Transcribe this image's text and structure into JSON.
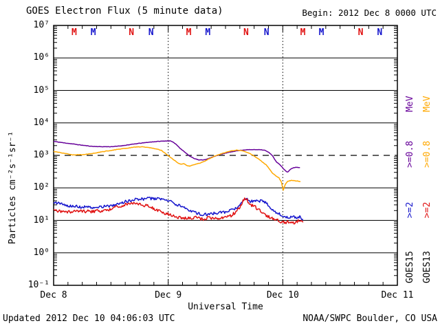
{
  "header": {
    "title": "GOES Electron Flux (5 minute data)",
    "begin": "Begin: 2012 Dec 8 0000 UTC"
  },
  "footer": {
    "updated": "Updated 2012 Dec 10 04:06:03 UTC",
    "source": "NOAA/SWPC Boulder, CO USA"
  },
  "axes": {
    "ylabel": "Particles cm⁻²s⁻¹sr⁻¹",
    "xlabel": "Universal Time",
    "x_ticks": [
      "Dec 8",
      "Dec 9",
      "Dec 10",
      "Dec 11"
    ],
    "y_ticks": [
      "10⁷",
      "10⁶",
      "10⁵",
      "10⁴",
      "10³",
      "10²",
      "10¹",
      "10⁰",
      "10⁻¹"
    ]
  },
  "colors": {
    "black": "#000000",
    "blue": "#1414CC",
    "red": "#E01010",
    "purple": "#660099",
    "gold": "#FFA800",
    "background": "#FFFFFF"
  },
  "legend": {
    "goes15": {
      "sat": "GOES15",
      "e2": ">=2",
      "e08": ">=0.8",
      "mev": "MeV"
    },
    "goes13": {
      "sat": "GOES13",
      "e2": ">=2",
      "e08": ">=0.8",
      "mev": "MeV"
    }
  },
  "chart_data": {
    "type": "line",
    "title": "GOES Electron Flux (5 minute data)",
    "x_unit": "hours since 2012 Dec 8 0000 UTC",
    "x_range": [
      0,
      72
    ],
    "y_scale": "log",
    "y_range": [
      0.1,
      10000000
    ],
    "grid_decades": [
      1000000,
      100000,
      10000,
      100,
      10,
      1
    ],
    "threshold": {
      "value": 1000,
      "style": "dashed"
    },
    "day_lines": [
      24,
      48
    ],
    "legend_position": "right-rotated",
    "marker_colors": {
      "GOES13": "#E01010",
      "GOES15": "#1414CC"
    },
    "markers": [
      {
        "h": 4.3,
        "label": "M",
        "sat": "GOES13"
      },
      {
        "h": 8.3,
        "label": "M",
        "sat": "GOES15"
      },
      {
        "h": 16.3,
        "label": "N",
        "sat": "GOES13"
      },
      {
        "h": 20.4,
        "label": "N",
        "sat": "GOES15"
      },
      {
        "h": 28.3,
        "label": "M",
        "sat": "GOES13"
      },
      {
        "h": 32.3,
        "label": "M",
        "sat": "GOES15"
      },
      {
        "h": 40.3,
        "label": "N",
        "sat": "GOES13"
      },
      {
        "h": 44.6,
        "label": "N",
        "sat": "GOES15"
      },
      {
        "h": 52.2,
        "label": "M",
        "sat": "GOES13"
      },
      {
        "h": 56.1,
        "label": "M",
        "sat": "GOES15"
      },
      {
        "h": 64.3,
        "label": "N",
        "sat": "GOES13"
      },
      {
        "h": 68.3,
        "label": "N",
        "sat": "GOES15"
      }
    ],
    "series": [
      {
        "id": "goes15-ge08mev",
        "name": "GOES15 >=0.8 MeV",
        "color": "#660099",
        "noise": 0.006,
        "points": [
          [
            0,
            2700
          ],
          [
            2,
            2450
          ],
          [
            4,
            2250
          ],
          [
            6,
            2050
          ],
          [
            8,
            1900
          ],
          [
            10,
            1850
          ],
          [
            12,
            1850
          ],
          [
            14,
            1950
          ],
          [
            16,
            2150
          ],
          [
            18,
            2350
          ],
          [
            20,
            2550
          ],
          [
            22,
            2700
          ],
          [
            23.5,
            2780
          ],
          [
            24.5,
            2780
          ],
          [
            25.5,
            2300
          ],
          [
            26.5,
            1650
          ],
          [
            27.5,
            1250
          ],
          [
            28.5,
            950
          ],
          [
            29.5,
            800
          ],
          [
            30.5,
            720
          ],
          [
            31.5,
            730
          ],
          [
            32.5,
            800
          ],
          [
            33.8,
            950
          ],
          [
            35,
            1080
          ],
          [
            36.3,
            1200
          ],
          [
            37.7,
            1330
          ],
          [
            39,
            1430
          ],
          [
            40.5,
            1490
          ],
          [
            42,
            1500
          ],
          [
            43.2,
            1510
          ],
          [
            44.2,
            1440
          ],
          [
            45,
            1250
          ],
          [
            45.8,
            1000
          ],
          [
            46.6,
            640
          ],
          [
            47.3,
            530
          ],
          [
            48,
            410
          ],
          [
            48.6,
            330
          ],
          [
            49,
            305
          ],
          [
            49.6,
            370
          ],
          [
            50.2,
            420
          ],
          [
            50.9,
            430
          ],
          [
            51.6,
            420
          ]
        ]
      },
      {
        "id": "goes13-ge08mev",
        "name": "GOES13 >=0.8 MeV",
        "color": "#FFA800",
        "noise": 0.007,
        "points": [
          [
            0,
            1320
          ],
          [
            2,
            1180
          ],
          [
            4,
            1030
          ],
          [
            6,
            1050
          ],
          [
            8,
            1130
          ],
          [
            10,
            1280
          ],
          [
            12,
            1420
          ],
          [
            14,
            1580
          ],
          [
            16,
            1720
          ],
          [
            17.5,
            1820
          ],
          [
            18.5,
            1840
          ],
          [
            20,
            1740
          ],
          [
            21.5,
            1580
          ],
          [
            22.6,
            1420
          ],
          [
            23.8,
            1020
          ],
          [
            24.8,
            800
          ],
          [
            25.8,
            620
          ],
          [
            26.6,
            530
          ],
          [
            27.3,
            560
          ],
          [
            27.9,
            490
          ],
          [
            28.5,
            470
          ],
          [
            29.5,
            520
          ],
          [
            30.5,
            570
          ],
          [
            31.5,
            650
          ],
          [
            32.5,
            780
          ],
          [
            33.8,
            950
          ],
          [
            35,
            1100
          ],
          [
            36.3,
            1270
          ],
          [
            37.5,
            1400
          ],
          [
            38.3,
            1450
          ],
          [
            39.2,
            1400
          ],
          [
            40.2,
            1300
          ],
          [
            41.2,
            1120
          ],
          [
            42,
            950
          ],
          [
            42.9,
            780
          ],
          [
            43.6,
            650
          ],
          [
            44.5,
            510
          ],
          [
            45.2,
            380
          ],
          [
            45.9,
            280
          ],
          [
            46.6,
            230
          ],
          [
            47.2,
            205
          ],
          [
            47.7,
            150
          ],
          [
            48.1,
            85
          ],
          [
            48.5,
            125
          ],
          [
            49,
            160
          ],
          [
            49.8,
            170
          ],
          [
            50.6,
            165
          ],
          [
            51.3,
            160
          ],
          [
            51.7,
            155
          ]
        ]
      },
      {
        "id": "goes15-ge2mev",
        "name": "GOES15 >=2 MeV",
        "color": "#1414CC",
        "noise": 0.045,
        "points": [
          [
            0,
            38
          ],
          [
            1.7,
            32
          ],
          [
            3.2,
            28
          ],
          [
            5.3,
            26
          ],
          [
            7.5,
            25
          ],
          [
            9.6,
            26
          ],
          [
            11.8,
            28
          ],
          [
            13.2,
            32
          ],
          [
            14.7,
            37
          ],
          [
            16.1,
            42
          ],
          [
            17.6,
            45
          ],
          [
            19,
            46
          ],
          [
            20.4,
            47
          ],
          [
            21.9,
            46
          ],
          [
            23.3,
            44
          ],
          [
            24.8,
            36
          ],
          [
            26.2,
            29
          ],
          [
            27.4,
            25
          ],
          [
            28.7,
            20
          ],
          [
            29.8,
            17
          ],
          [
            30.8,
            15.5
          ],
          [
            32,
            15
          ],
          [
            33.1,
            16
          ],
          [
            34.6,
            17
          ],
          [
            36,
            18
          ],
          [
            37.4,
            21
          ],
          [
            38.6,
            26
          ],
          [
            39.5,
            34
          ],
          [
            40,
            48
          ],
          [
            40.4,
            44
          ],
          [
            41.2,
            39
          ],
          [
            42,
            38
          ],
          [
            42.8,
            40
          ],
          [
            43.5,
            39
          ],
          [
            44.2,
            36
          ],
          [
            44.9,
            30
          ],
          [
            45.6,
            23
          ],
          [
            46.4,
            19
          ],
          [
            47.1,
            16
          ],
          [
            48,
            14
          ],
          [
            48.7,
            12.5
          ],
          [
            49.2,
            12
          ],
          [
            50,
            13
          ],
          [
            50.7,
            12
          ],
          [
            51.4,
            13
          ],
          [
            52.2,
            11
          ]
        ]
      },
      {
        "id": "goes13-ge2mev",
        "name": "GOES13 >=2 MeV",
        "color": "#E01010",
        "noise": 0.05,
        "points": [
          [
            0,
            20
          ],
          [
            1.7,
            19
          ],
          [
            3.9,
            18.5
          ],
          [
            6,
            19
          ],
          [
            8.2,
            19
          ],
          [
            10.4,
            20
          ],
          [
            12.1,
            22
          ],
          [
            13.5,
            26
          ],
          [
            14.7,
            30
          ],
          [
            16.1,
            33
          ],
          [
            17.6,
            33
          ],
          [
            19,
            29
          ],
          [
            20.2,
            26
          ],
          [
            21.3,
            22
          ],
          [
            22.3,
            20
          ],
          [
            23.6,
            16
          ],
          [
            24.8,
            14
          ],
          [
            25.9,
            12.5
          ],
          [
            27.1,
            12
          ],
          [
            28.4,
            11.5
          ],
          [
            29.8,
            12
          ],
          [
            31.2,
            11
          ],
          [
            32.7,
            12
          ],
          [
            34.1,
            11.5
          ],
          [
            35.6,
            12
          ],
          [
            37,
            13.5
          ],
          [
            38,
            17
          ],
          [
            38.9,
            25
          ],
          [
            39.5,
            35
          ],
          [
            40,
            49
          ],
          [
            40.4,
            45
          ],
          [
            41,
            34
          ],
          [
            41.8,
            27
          ],
          [
            42.3,
            25
          ],
          [
            42.9,
            21
          ],
          [
            43.5,
            19
          ],
          [
            44.2,
            15
          ],
          [
            44.9,
            13
          ],
          [
            45.6,
            12
          ],
          [
            46.4,
            11
          ],
          [
            47.1,
            10
          ],
          [
            47.8,
            9
          ],
          [
            48.5,
            8.5
          ],
          [
            49.2,
            9
          ],
          [
            50,
            8
          ],
          [
            50.7,
            9
          ],
          [
            51.4,
            10
          ],
          [
            51.9,
            9
          ],
          [
            52.3,
            9
          ]
        ]
      }
    ]
  }
}
